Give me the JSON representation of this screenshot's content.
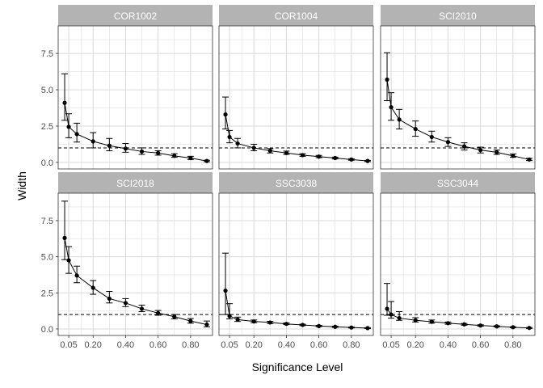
{
  "chart_data": {
    "type": "line",
    "xlabel": "Significance Level",
    "ylabel": "Width",
    "x_ticks": [
      0.05,
      0.2,
      0.4,
      0.6,
      0.8
    ],
    "x_tick_labels": [
      "0.05",
      "0.20",
      "0.40",
      "0.60",
      "0.80"
    ],
    "y_ticks": [
      0,
      2.5,
      5,
      7.5
    ],
    "y_tick_labels": [
      "0.0",
      "2.5",
      "5.0",
      "7.5"
    ],
    "xlim": [
      -0.015,
      0.935
    ],
    "ylim": [
      -0.45,
      9.4
    ],
    "reference_line": 1,
    "grid": true,
    "panels": [
      {
        "name": "COR1002",
        "points": [
          {
            "x": 0.025,
            "y": 4.1,
            "lo": 2.9,
            "hi": 6.1
          },
          {
            "x": 0.05,
            "y": 2.45,
            "lo": 1.7,
            "hi": 3.35
          },
          {
            "x": 0.1,
            "y": 1.95,
            "lo": 1.4,
            "hi": 2.7
          },
          {
            "x": 0.2,
            "y": 1.45,
            "lo": 1.0,
            "hi": 2.05
          },
          {
            "x": 0.3,
            "y": 1.15,
            "lo": 0.8,
            "hi": 1.65
          },
          {
            "x": 0.4,
            "y": 0.95,
            "lo": 0.7,
            "hi": 1.3
          },
          {
            "x": 0.5,
            "y": 0.75,
            "lo": 0.55,
            "hi": 1.0
          },
          {
            "x": 0.6,
            "y": 0.65,
            "lo": 0.5,
            "hi": 0.8
          },
          {
            "x": 0.7,
            "y": 0.45,
            "lo": 0.35,
            "hi": 0.6
          },
          {
            "x": 0.8,
            "y": 0.3,
            "lo": 0.2,
            "hi": 0.42
          },
          {
            "x": 0.9,
            "y": 0.1,
            "lo": 0.05,
            "hi": 0.15
          }
        ]
      },
      {
        "name": "COR1004",
        "points": [
          {
            "x": 0.025,
            "y": 3.3,
            "lo": 2.3,
            "hi": 4.5
          },
          {
            "x": 0.05,
            "y": 1.75,
            "lo": 1.35,
            "hi": 2.2
          },
          {
            "x": 0.1,
            "y": 1.3,
            "lo": 1.0,
            "hi": 1.65
          },
          {
            "x": 0.2,
            "y": 1.0,
            "lo": 0.8,
            "hi": 1.25
          },
          {
            "x": 0.3,
            "y": 0.8,
            "lo": 0.65,
            "hi": 0.95
          },
          {
            "x": 0.4,
            "y": 0.65,
            "lo": 0.55,
            "hi": 0.78
          },
          {
            "x": 0.5,
            "y": 0.5,
            "lo": 0.42,
            "hi": 0.6
          },
          {
            "x": 0.6,
            "y": 0.4,
            "lo": 0.33,
            "hi": 0.48
          },
          {
            "x": 0.7,
            "y": 0.3,
            "lo": 0.24,
            "hi": 0.36
          },
          {
            "x": 0.8,
            "y": 0.2,
            "lo": 0.15,
            "hi": 0.25
          },
          {
            "x": 0.9,
            "y": 0.1,
            "lo": 0.06,
            "hi": 0.14
          }
        ]
      },
      {
        "name": "SCI2010",
        "points": [
          {
            "x": 0.025,
            "y": 5.7,
            "lo": 4.25,
            "hi": 7.55
          },
          {
            "x": 0.05,
            "y": 3.8,
            "lo": 2.9,
            "hi": 4.8
          },
          {
            "x": 0.1,
            "y": 2.95,
            "lo": 2.3,
            "hi": 3.65
          },
          {
            "x": 0.2,
            "y": 2.3,
            "lo": 1.8,
            "hi": 2.85
          },
          {
            "x": 0.3,
            "y": 1.75,
            "lo": 1.4,
            "hi": 2.15
          },
          {
            "x": 0.4,
            "y": 1.4,
            "lo": 1.1,
            "hi": 1.7
          },
          {
            "x": 0.5,
            "y": 1.1,
            "lo": 0.85,
            "hi": 1.35
          },
          {
            "x": 0.6,
            "y": 0.85,
            "lo": 0.65,
            "hi": 1.05
          },
          {
            "x": 0.7,
            "y": 0.7,
            "lo": 0.55,
            "hi": 0.85
          },
          {
            "x": 0.8,
            "y": 0.45,
            "lo": 0.35,
            "hi": 0.58
          },
          {
            "x": 0.9,
            "y": 0.2,
            "lo": 0.13,
            "hi": 0.28
          }
        ]
      },
      {
        "name": "SCI2018",
        "points": [
          {
            "x": 0.025,
            "y": 6.3,
            "lo": 4.8,
            "hi": 8.85
          },
          {
            "x": 0.05,
            "y": 4.75,
            "lo": 3.85,
            "hi": 5.7
          },
          {
            "x": 0.1,
            "y": 3.7,
            "lo": 3.2,
            "hi": 4.35
          },
          {
            "x": 0.2,
            "y": 2.85,
            "lo": 2.4,
            "hi": 3.35
          },
          {
            "x": 0.3,
            "y": 2.1,
            "lo": 1.8,
            "hi": 2.6
          },
          {
            "x": 0.4,
            "y": 1.8,
            "lo": 1.55,
            "hi": 2.1
          },
          {
            "x": 0.5,
            "y": 1.4,
            "lo": 1.2,
            "hi": 1.65
          },
          {
            "x": 0.6,
            "y": 1.1,
            "lo": 0.95,
            "hi": 1.28
          },
          {
            "x": 0.7,
            "y": 0.85,
            "lo": 0.7,
            "hi": 1.0
          },
          {
            "x": 0.8,
            "y": 0.55,
            "lo": 0.4,
            "hi": 0.72
          },
          {
            "x": 0.9,
            "y": 0.3,
            "lo": 0.15,
            "hi": 0.55
          }
        ]
      },
      {
        "name": "SSC3038",
        "points": [
          {
            "x": 0.025,
            "y": 2.65,
            "lo": 1.0,
            "hi": 5.25
          },
          {
            "x": 0.05,
            "y": 0.9,
            "lo": 0.7,
            "hi": 1.75
          },
          {
            "x": 0.1,
            "y": 0.65,
            "lo": 0.52,
            "hi": 0.82
          },
          {
            "x": 0.2,
            "y": 0.52,
            "lo": 0.43,
            "hi": 0.62
          },
          {
            "x": 0.3,
            "y": 0.45,
            "lo": 0.38,
            "hi": 0.53
          },
          {
            "x": 0.4,
            "y": 0.35,
            "lo": 0.3,
            "hi": 0.42
          },
          {
            "x": 0.5,
            "y": 0.28,
            "lo": 0.23,
            "hi": 0.33
          },
          {
            "x": 0.6,
            "y": 0.2,
            "lo": 0.16,
            "hi": 0.25
          },
          {
            "x": 0.7,
            "y": 0.15,
            "lo": 0.11,
            "hi": 0.19
          },
          {
            "x": 0.8,
            "y": 0.1,
            "lo": 0.07,
            "hi": 0.13
          },
          {
            "x": 0.9,
            "y": 0.06,
            "lo": 0.03,
            "hi": 0.09
          }
        ]
      },
      {
        "name": "SSC3044",
        "points": [
          {
            "x": 0.025,
            "y": 1.4,
            "lo": 0.95,
            "hi": 3.15
          },
          {
            "x": 0.05,
            "y": 1.0,
            "lo": 0.75,
            "hi": 1.9
          },
          {
            "x": 0.1,
            "y": 0.75,
            "lo": 0.6,
            "hi": 1.2
          },
          {
            "x": 0.2,
            "y": 0.6,
            "lo": 0.48,
            "hi": 0.78
          },
          {
            "x": 0.3,
            "y": 0.5,
            "lo": 0.4,
            "hi": 0.62
          },
          {
            "x": 0.4,
            "y": 0.4,
            "lo": 0.33,
            "hi": 0.48
          },
          {
            "x": 0.5,
            "y": 0.32,
            "lo": 0.26,
            "hi": 0.38
          },
          {
            "x": 0.6,
            "y": 0.24,
            "lo": 0.19,
            "hi": 0.29
          },
          {
            "x": 0.7,
            "y": 0.18,
            "lo": 0.14,
            "hi": 0.22
          },
          {
            "x": 0.8,
            "y": 0.12,
            "lo": 0.09,
            "hi": 0.15
          },
          {
            "x": 0.9,
            "y": 0.07,
            "lo": 0.04,
            "hi": 0.1
          }
        ]
      }
    ]
  },
  "colors": {
    "strip_bg": "#b3b3b3",
    "strip_text": "#ffffff",
    "grid": "#d9d9d9",
    "panel_border": "#333333",
    "series": "#000000",
    "reference_line": "#000000",
    "tick_text": "#4d4d4d"
  }
}
